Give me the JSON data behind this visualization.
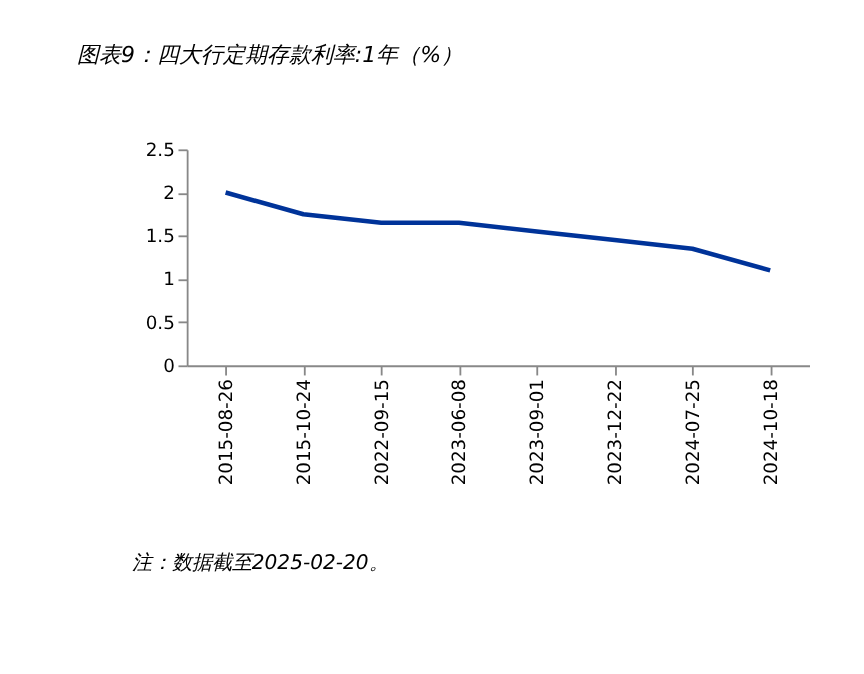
{
  "chart_data": {
    "type": "line",
    "title": "图表9：四大行定期存款利率:1年（%）",
    "categories": [
      "2015-08-26",
      "2015-10-24",
      "2022-09-15",
      "2023-06-08",
      "2023-09-01",
      "2023-12-22",
      "2024-07-25",
      "2024-10-18"
    ],
    "series": [
      {
        "color": "#003399",
        "values": [
          2.0,
          1.75,
          1.65,
          1.65,
          1.55,
          1.45,
          1.35,
          1.1
        ]
      }
    ],
    "ylim": [
      0,
      2.5
    ],
    "yticks": [
      0,
      0.5,
      1,
      1.5,
      2,
      2.5
    ],
    "grid": false,
    "marker": "none",
    "line_style": "solid",
    "annotations": [
      "注：数据截至2025-02-20。"
    ]
  }
}
